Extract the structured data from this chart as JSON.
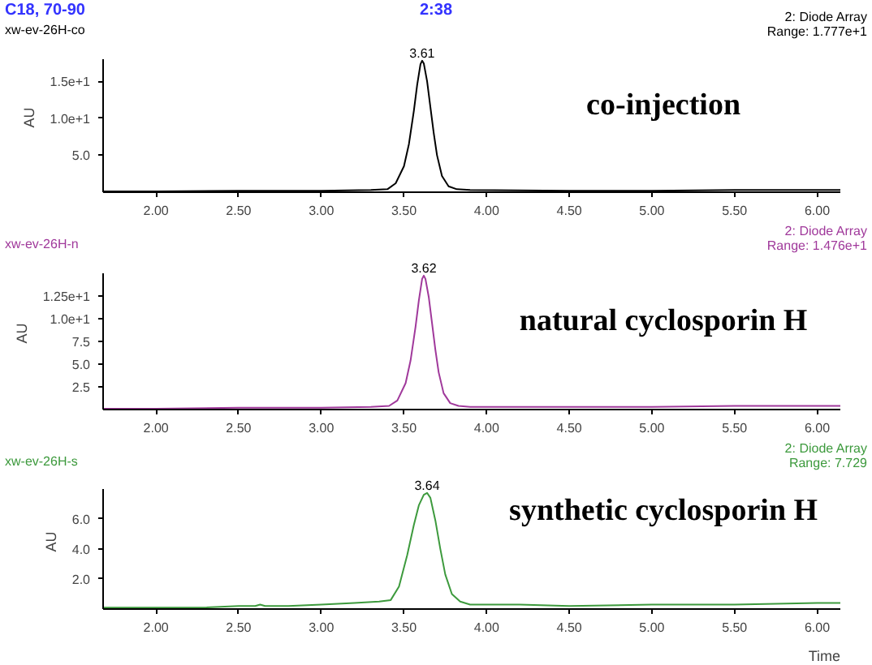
{
  "chart_data": [
    {
      "type": "line",
      "title": "C18, 70-90",
      "subtitle": "2:38",
      "ylabel": "AU",
      "annotations": [
        "xw-ev-26H-co",
        "2: Diode Array",
        "Range: 1.777e+1",
        "co-injection",
        {
          "text": "3.61",
          "x": 3.61,
          "y": 17.77
        }
      ],
      "x": [
        1.68,
        2.0,
        2.5,
        3.0,
        3.3,
        3.4,
        3.45,
        3.5,
        3.53,
        3.56,
        3.58,
        3.6,
        3.61,
        3.62,
        3.64,
        3.66,
        3.68,
        3.7,
        3.73,
        3.77,
        3.82,
        3.9,
        4.5,
        5.0,
        5.5,
        6.0,
        6.14
      ],
      "series": [
        {
          "color": "#000000",
          "values": [
            0.1,
            0.1,
            0.2,
            0.2,
            0.3,
            0.4,
            1.2,
            3.5,
            6.5,
            11.0,
            14.5,
            17.3,
            17.77,
            17.4,
            15.0,
            11.5,
            8.0,
            5.0,
            2.2,
            0.8,
            0.4,
            0.3,
            0.2,
            0.2,
            0.3,
            0.3,
            0.3
          ]
        }
      ],
      "xlim": [
        1.68,
        6.14
      ],
      "ylim": [
        0,
        18
      ],
      "xticks": [
        {
          "value": 2,
          "label": "2.00"
        },
        {
          "value": 2.5,
          "label": "2.50"
        },
        {
          "value": 3,
          "label": "3.00"
        },
        {
          "value": 3.5,
          "label": "3.50"
        },
        {
          "value": 4,
          "label": "4.00"
        },
        {
          "value": 4.5,
          "label": "4.50"
        },
        {
          "value": 5,
          "label": "5.00"
        },
        {
          "value": 5.5,
          "label": "5.50"
        },
        {
          "value": 6,
          "label": "6.00"
        }
      ],
      "yticks": [
        {
          "value": 5,
          "label": "5.0"
        },
        {
          "value": 10,
          "label": "1.0e+1"
        },
        {
          "value": 15,
          "label": "1.5e+1"
        }
      ],
      "grid": false
    },
    {
      "type": "line",
      "ylabel": "AU",
      "annotations": [
        "xw-ev-26H-n",
        "2: Diode Array",
        "Range: 1.476e+1",
        "natural cyclosporin H",
        {
          "text": "3.62",
          "x": 3.62,
          "y": 14.76
        }
      ],
      "x": [
        1.68,
        2.0,
        2.5,
        3.0,
        3.3,
        3.41,
        3.46,
        3.51,
        3.54,
        3.57,
        3.59,
        3.61,
        3.62,
        3.63,
        3.65,
        3.67,
        3.69,
        3.71,
        3.74,
        3.78,
        3.83,
        3.9,
        4.5,
        5.0,
        5.5,
        6.0,
        6.14
      ],
      "series": [
        {
          "color": "#a0399b",
          "values": [
            0.1,
            0.1,
            0.2,
            0.2,
            0.3,
            0.4,
            1.0,
            2.9,
            5.4,
            9.1,
            12.0,
            14.4,
            14.76,
            14.4,
            12.4,
            9.5,
            6.6,
            4.1,
            1.8,
            0.7,
            0.4,
            0.3,
            0.3,
            0.3,
            0.4,
            0.4,
            0.4
          ]
        }
      ],
      "xlim": [
        1.68,
        6.14
      ],
      "ylim": [
        0,
        15
      ],
      "xticks": [
        {
          "value": 2,
          "label": "2.00"
        },
        {
          "value": 2.5,
          "label": "2.50"
        },
        {
          "value": 3,
          "label": "3.00"
        },
        {
          "value": 3.5,
          "label": "3.50"
        },
        {
          "value": 4,
          "label": "4.00"
        },
        {
          "value": 4.5,
          "label": "4.50"
        },
        {
          "value": 5,
          "label": "5.00"
        },
        {
          "value": 5.5,
          "label": "5.50"
        },
        {
          "value": 6,
          "label": "6.00"
        }
      ],
      "yticks": [
        {
          "value": 2.5,
          "label": "2.5"
        },
        {
          "value": 5,
          "label": "5.0"
        },
        {
          "value": 7.5,
          "label": "7.5"
        },
        {
          "value": 10,
          "label": "1.0e+1"
        },
        {
          "value": 12.5,
          "label": "1.25e+1"
        }
      ],
      "grid": false
    },
    {
      "type": "line",
      "xlabel": "Time",
      "ylabel": "AU",
      "annotations": [
        "xw-ev-26H-s",
        "2: Diode Array",
        "Range: 7.729",
        "synthetic cyclosporin H",
        {
          "text": "3.64",
          "x": 3.64,
          "y": 7.729
        }
      ],
      "x": [
        1.68,
        1.8,
        2.0,
        2.3,
        2.5,
        2.6,
        2.63,
        2.66,
        2.8,
        3.0,
        3.2,
        3.35,
        3.42,
        3.47,
        3.52,
        3.56,
        3.59,
        3.62,
        3.64,
        3.66,
        3.69,
        3.72,
        3.75,
        3.79,
        3.84,
        3.9,
        4.2,
        4.5,
        5.0,
        5.5,
        6.0,
        6.14
      ],
      "series": [
        {
          "color": "#3d9a3d",
          "values": [
            0.1,
            0.1,
            0.1,
            0.1,
            0.2,
            0.2,
            0.3,
            0.2,
            0.2,
            0.3,
            0.4,
            0.5,
            0.6,
            1.5,
            3.6,
            5.6,
            6.9,
            7.6,
            7.729,
            7.4,
            5.9,
            4.0,
            2.3,
            1.0,
            0.5,
            0.3,
            0.3,
            0.2,
            0.3,
            0.3,
            0.4,
            0.4
          ]
        }
      ],
      "xlim": [
        1.68,
        6.14
      ],
      "ylim": [
        0,
        8
      ],
      "xticks": [
        {
          "value": 2,
          "label": "2.00"
        },
        {
          "value": 2.5,
          "label": "2.50"
        },
        {
          "value": 3,
          "label": "3.00"
        },
        {
          "value": 3.5,
          "label": "3.50"
        },
        {
          "value": 4,
          "label": "4.00"
        },
        {
          "value": 4.5,
          "label": "4.50"
        },
        {
          "value": 5,
          "label": "5.00"
        },
        {
          "value": 5.5,
          "label": "5.50"
        },
        {
          "value": 6,
          "label": "6.00"
        }
      ],
      "yticks": [
        {
          "value": 2,
          "label": "2.0"
        },
        {
          "value": 4,
          "label": "4.0"
        },
        {
          "value": 6,
          "label": "6.0"
        }
      ],
      "grid": false
    }
  ]
}
